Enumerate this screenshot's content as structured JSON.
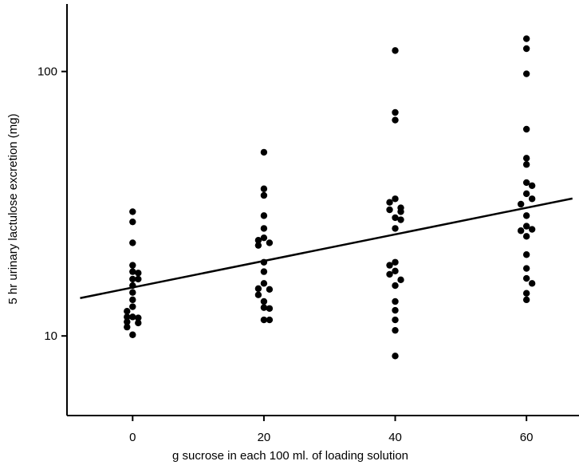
{
  "chart_data": {
    "type": "scatter",
    "title": "",
    "xlabel": "g sucrose in each 100 ml. of loading solution",
    "ylabel": "5 hr urinary lactulose excretion (mg)",
    "xlim": [
      -10,
      68
    ],
    "ylim": [
      5,
      180
    ],
    "y_scale": "log",
    "x_ticks": [
      0,
      20,
      40,
      60
    ],
    "x_tick_labels": [
      "0",
      "20",
      "40",
      "60"
    ],
    "y_ticks": [
      10,
      100
    ],
    "y_tick_labels": [
      "10",
      "100"
    ],
    "grid": false,
    "series": [
      {
        "points": [
          {
            "x": 0,
            "y": 29.5
          },
          {
            "x": 0,
            "y": 27.0
          },
          {
            "x": 0,
            "y": 22.5
          },
          {
            "x": 0,
            "y": 18.5
          },
          {
            "x": 0,
            "y": 17.5
          },
          {
            "x": 0,
            "y": 17.3
          },
          {
            "x": 0,
            "y": 16.4
          },
          {
            "x": 0,
            "y": 16.4
          },
          {
            "x": 0,
            "y": 15.5
          },
          {
            "x": 0,
            "y": 14.6
          },
          {
            "x": 0,
            "y": 13.7
          },
          {
            "x": 0,
            "y": 12.9
          },
          {
            "x": 0,
            "y": 12.4
          },
          {
            "x": 0,
            "y": 11.8
          },
          {
            "x": 0,
            "y": 11.8
          },
          {
            "x": 0,
            "y": 11.7
          },
          {
            "x": 0,
            "y": 11.3
          },
          {
            "x": 0,
            "y": 11.2
          },
          {
            "x": 0,
            "y": 10.8
          },
          {
            "x": 0,
            "y": 10.1
          },
          {
            "x": 20,
            "y": 49.5
          },
          {
            "x": 20,
            "y": 36.0
          },
          {
            "x": 20,
            "y": 34.0
          },
          {
            "x": 20,
            "y": 28.5
          },
          {
            "x": 20,
            "y": 25.5
          },
          {
            "x": 20,
            "y": 23.5
          },
          {
            "x": 20,
            "y": 23.0
          },
          {
            "x": 20,
            "y": 22.5
          },
          {
            "x": 20,
            "y": 22.0
          },
          {
            "x": 20,
            "y": 19.0
          },
          {
            "x": 20,
            "y": 17.5
          },
          {
            "x": 20,
            "y": 15.8
          },
          {
            "x": 20,
            "y": 15.1
          },
          {
            "x": 20,
            "y": 15.0
          },
          {
            "x": 20,
            "y": 14.3
          },
          {
            "x": 20,
            "y": 13.5
          },
          {
            "x": 20,
            "y": 12.8
          },
          {
            "x": 20,
            "y": 12.7
          },
          {
            "x": 20,
            "y": 11.5
          },
          {
            "x": 20,
            "y": 11.5
          },
          {
            "x": 40,
            "y": 120.0
          },
          {
            "x": 40,
            "y": 70.0
          },
          {
            "x": 40,
            "y": 65.5
          },
          {
            "x": 40,
            "y": 33.0
          },
          {
            "x": 40,
            "y": 32.0
          },
          {
            "x": 40,
            "y": 30.5
          },
          {
            "x": 40,
            "y": 30.0
          },
          {
            "x": 40,
            "y": 29.5
          },
          {
            "x": 40,
            "y": 28.0
          },
          {
            "x": 40,
            "y": 27.5
          },
          {
            "x": 40,
            "y": 25.5
          },
          {
            "x": 40,
            "y": 19.0
          },
          {
            "x": 40,
            "y": 18.5
          },
          {
            "x": 40,
            "y": 17.6
          },
          {
            "x": 40,
            "y": 17.1
          },
          {
            "x": 40,
            "y": 16.3
          },
          {
            "x": 40,
            "y": 15.5
          },
          {
            "x": 40,
            "y": 13.5
          },
          {
            "x": 40,
            "y": 12.5
          },
          {
            "x": 40,
            "y": 11.5
          },
          {
            "x": 40,
            "y": 10.5
          },
          {
            "x": 40,
            "y": 8.4
          },
          {
            "x": 60,
            "y": 133.0
          },
          {
            "x": 60,
            "y": 122.0
          },
          {
            "x": 60,
            "y": 98.0
          },
          {
            "x": 60,
            "y": 60.5
          },
          {
            "x": 60,
            "y": 47.0
          },
          {
            "x": 60,
            "y": 44.5
          },
          {
            "x": 60,
            "y": 38.0
          },
          {
            "x": 60,
            "y": 37.0
          },
          {
            "x": 60,
            "y": 34.5
          },
          {
            "x": 60,
            "y": 33.0
          },
          {
            "x": 60,
            "y": 31.5
          },
          {
            "x": 60,
            "y": 28.5
          },
          {
            "x": 60,
            "y": 26.0
          },
          {
            "x": 60,
            "y": 25.3
          },
          {
            "x": 60,
            "y": 25.0
          },
          {
            "x": 60,
            "y": 23.8
          },
          {
            "x": 60,
            "y": 20.3
          },
          {
            "x": 60,
            "y": 18.0
          },
          {
            "x": 60,
            "y": 16.5
          },
          {
            "x": 60,
            "y": 15.8
          },
          {
            "x": 60,
            "y": 14.5
          },
          {
            "x": 60,
            "y": 13.7
          }
        ]
      }
    ],
    "regression_line": {
      "x": [
        -8,
        67
      ],
      "y": [
        13.9,
        33.1
      ]
    }
  }
}
